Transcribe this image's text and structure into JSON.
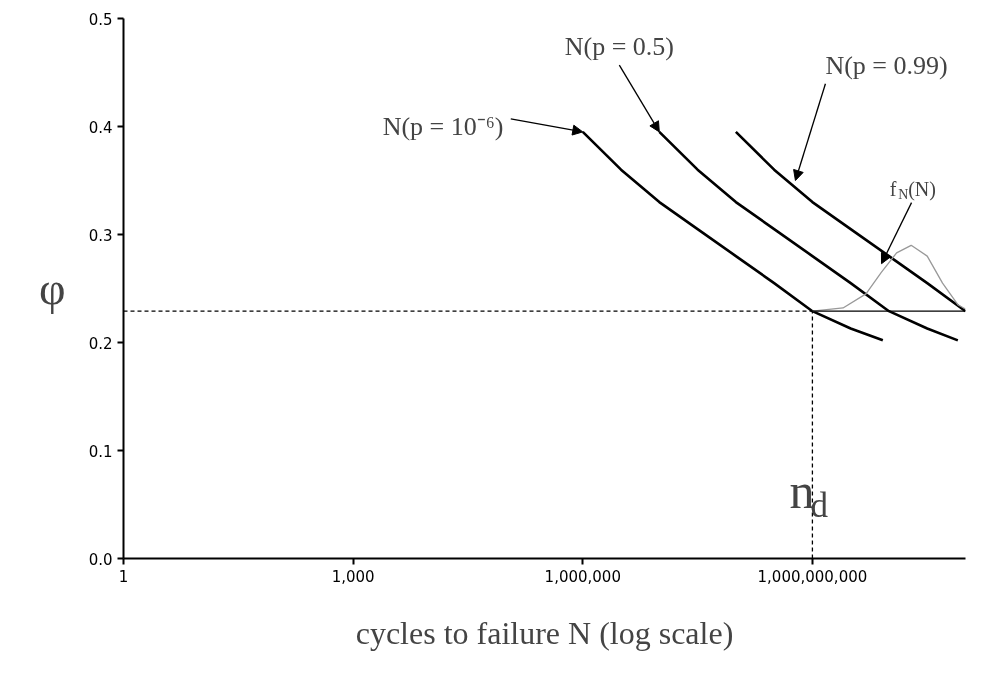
{
  "chart_data": {
    "type": "line",
    "xlabel": "cycles to failure N (log scale)",
    "ylabel": "φ",
    "log": "x",
    "xlim": [
      1,
      100000000000
    ],
    "ylim": [
      0,
      0.5
    ],
    "xticks": [
      {
        "value": 1,
        "label": "1"
      },
      {
        "value": 1000,
        "label": "1,000"
      },
      {
        "value": 1000000,
        "label": "1,000,000"
      },
      {
        "value": 1000000000,
        "label": "1,000,000,000"
      }
    ],
    "yticks": [
      {
        "value": 0,
        "label": "0.0"
      },
      {
        "value": 0.1,
        "label": "0.1"
      },
      {
        "value": 0.2,
        "label": "0.2"
      },
      {
        "value": 0.3,
        "label": "0.3"
      },
      {
        "value": 0.4,
        "label": "0.4"
      },
      {
        "value": 0.5,
        "label": "0.5"
      }
    ],
    "grid": false,
    "marker": "none",
    "line_style": "solid",
    "series": [
      {
        "color": "#000000",
        "x": [
          1000000,
          3162278,
          10000000,
          31622777,
          100000000,
          316227766,
          1000000000,
          3162277660,
          8317637711
        ],
        "values": [
          0.395,
          0.36,
          0.33,
          0.305,
          0.28,
          0.255,
          0.229,
          0.213,
          0.202
        ]
      },
      {
        "color": "#000000",
        "x": [
          10000000,
          31622777,
          100000000,
          316227766,
          1000000000,
          3162277660,
          10000000000,
          31622776602,
          79432823472
        ],
        "values": [
          0.395,
          0.36,
          0.33,
          0.305,
          0.28,
          0.255,
          0.229,
          0.213,
          0.202
        ]
      },
      {
        "color": "#000000",
        "x": [
          100000000,
          316227766,
          1000000000,
          3162277660,
          10000000000,
          31622776602,
          100000000000
        ],
        "values": [
          0.395,
          0.36,
          0.33,
          0.305,
          0.28,
          0.255,
          0.229
        ]
      },
      {
        "color": "#999999",
        "x": [
          1000000000,
          2511886432,
          5011872336,
          7943282347,
          12589254118,
          19498445998,
          31622776602,
          50118723363,
          79432823472,
          100000000000
        ],
        "values": [
          0.229,
          0.232,
          0.245,
          0.265,
          0.283,
          0.29,
          0.28,
          0.255,
          0.235,
          0.231
        ]
      },
      {
        "color": "#000000",
        "x": [
          1000000000,
          100000000000
        ],
        "values": [
          0.229,
          0.229
        ]
      },
      {
        "color": "#000000",
        "line_style": "dashed",
        "x": [
          1,
          1000000000
        ],
        "values": [
          0.229,
          0.229
        ]
      },
      {
        "color": "#000000",
        "line_style": "dashed",
        "x": [
          1000000000,
          1000000000
        ],
        "values": [
          0,
          0.229
        ]
      }
    ],
    "annotations": [
      {
        "text": "N(p = 10⁻⁶)",
        "x": 1000000,
        "y": 0.395
      },
      {
        "text": "N(p = 0.5)",
        "x": 10000000,
        "y": 0.395
      },
      {
        "text": "N(p = 0.99)",
        "x": 600000000,
        "y": 0.35
      },
      {
        "text": "f$_{N}$(N)",
        "x": 8000000000,
        "y": 0.273
      },
      {
        "text": "n$_{d}$",
        "x": 1000000000,
        "y": 0.1
      }
    ]
  }
}
